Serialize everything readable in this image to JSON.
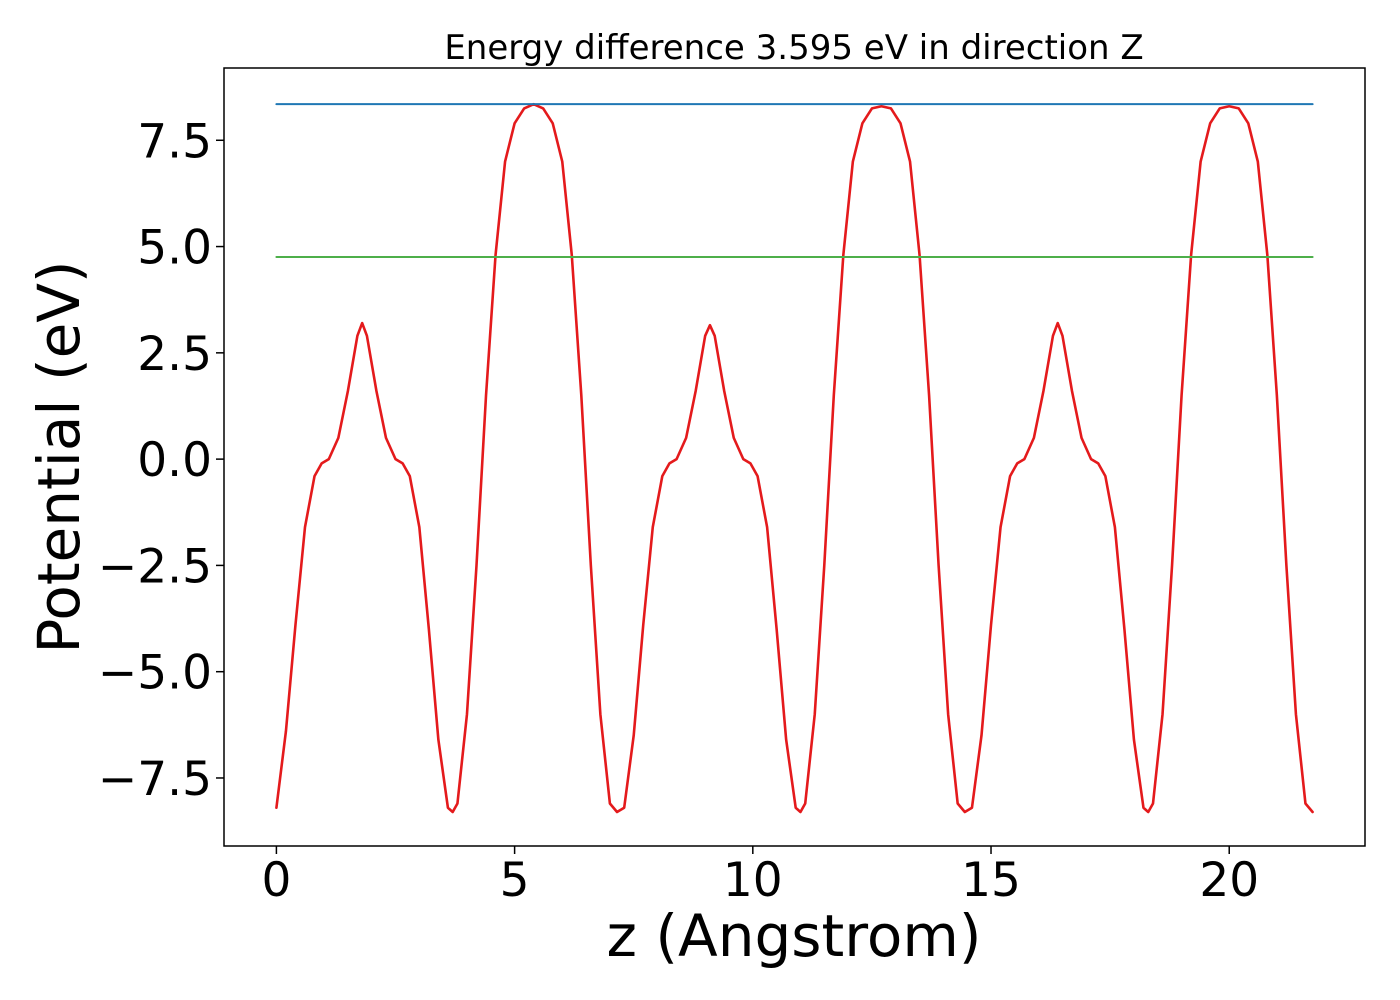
{
  "chart_data": {
    "type": "line",
    "title": "Energy difference 3.595 eV in direction Z",
    "xlabel": "z (Angstrom)",
    "ylabel": "Potential (eV)",
    "xlim": [
      -1.1,
      22.85
    ],
    "ylim": [
      -9.1,
      9.2
    ],
    "xticks": [
      0,
      5,
      10,
      15,
      20
    ],
    "xtick_labels": [
      "0",
      "5",
      "10",
      "15",
      "20"
    ],
    "yticks": [
      7.5,
      5.0,
      2.5,
      0.0,
      -2.5,
      -5.0,
      -7.5
    ],
    "ytick_labels": [
      "7.5",
      "5.0",
      "2.5",
      "0.0",
      "−2.5",
      "−5.0",
      "−7.5"
    ],
    "grid": false,
    "series": [
      {
        "color": "#e41a1c",
        "x": [
          0.0,
          0.2,
          0.4,
          0.6,
          0.8,
          0.95,
          1.1,
          1.3,
          1.5,
          1.7,
          1.8,
          1.9,
          2.1,
          2.3,
          2.5,
          2.65,
          2.8,
          3.0,
          3.2,
          3.4,
          3.6,
          3.7,
          3.8,
          4.0,
          4.2,
          4.4,
          4.6,
          4.8,
          5.0,
          5.2,
          5.4,
          5.6,
          5.8,
          6.0,
          6.2,
          6.4,
          6.6,
          6.8,
          7.0,
          7.15,
          7.3,
          7.5,
          7.7,
          7.9,
          8.1,
          8.25,
          8.4,
          8.6,
          8.8,
          9.0,
          9.1,
          9.2,
          9.4,
          9.6,
          9.8,
          9.95,
          10.1,
          10.3,
          10.5,
          10.7,
          10.9,
          11.0,
          11.1,
          11.3,
          11.5,
          11.7,
          11.9,
          12.1,
          12.3,
          12.5,
          12.7,
          12.9,
          13.1,
          13.3,
          13.5,
          13.7,
          13.9,
          14.1,
          14.3,
          14.45,
          14.6,
          14.8,
          15.0,
          15.2,
          15.4,
          15.55,
          15.7,
          15.9,
          16.1,
          16.3,
          16.4,
          16.5,
          16.7,
          16.9,
          17.1,
          17.25,
          17.4,
          17.6,
          17.8,
          18.0,
          18.2,
          18.3,
          18.4,
          18.6,
          18.8,
          19.0,
          19.2,
          19.4,
          19.6,
          19.8,
          20.0,
          20.2,
          20.4,
          20.6,
          20.8,
          21.0,
          21.2,
          21.4,
          21.6,
          21.75
        ],
        "y": [
          -8.2,
          -6.4,
          -3.9,
          -1.6,
          -0.4,
          -0.1,
          0.0,
          0.5,
          1.6,
          2.9,
          3.2,
          2.9,
          1.6,
          0.5,
          0.0,
          -0.1,
          -0.4,
          -1.6,
          -4.0,
          -6.6,
          -8.2,
          -8.3,
          -8.1,
          -6.0,
          -2.5,
          1.5,
          4.8,
          7.0,
          7.9,
          8.25,
          8.35,
          8.25,
          7.9,
          7.0,
          4.8,
          1.5,
          -2.5,
          -6.0,
          -8.1,
          -8.3,
          -8.2,
          -6.5,
          -3.9,
          -1.6,
          -0.4,
          -0.1,
          0.0,
          0.5,
          1.6,
          2.9,
          3.15,
          2.9,
          1.6,
          0.5,
          0.0,
          -0.1,
          -0.4,
          -1.6,
          -4.0,
          -6.6,
          -8.2,
          -8.3,
          -8.1,
          -6.0,
          -2.5,
          1.5,
          4.8,
          7.0,
          7.9,
          8.25,
          8.3,
          8.25,
          7.9,
          7.0,
          4.8,
          1.5,
          -2.5,
          -6.0,
          -8.1,
          -8.3,
          -8.2,
          -6.5,
          -3.9,
          -1.6,
          -0.4,
          -0.1,
          0.0,
          0.5,
          1.6,
          2.9,
          3.2,
          2.9,
          1.6,
          0.5,
          0.0,
          -0.1,
          -0.4,
          -1.6,
          -4.0,
          -6.6,
          -8.2,
          -8.3,
          -8.1,
          -6.0,
          -2.5,
          1.5,
          4.8,
          7.0,
          7.9,
          8.25,
          8.3,
          8.25,
          7.9,
          7.0,
          4.8,
          1.5,
          -2.5,
          -6.0,
          -8.1,
          -8.3
        ]
      },
      {
        "color": "#1f77b4",
        "x": [
          0.0,
          21.75
        ],
        "y": [
          8.35,
          8.35
        ]
      },
      {
        "color": "#4daf4a",
        "x": [
          0.0,
          21.75
        ],
        "y": [
          4.755,
          4.755
        ]
      }
    ]
  }
}
